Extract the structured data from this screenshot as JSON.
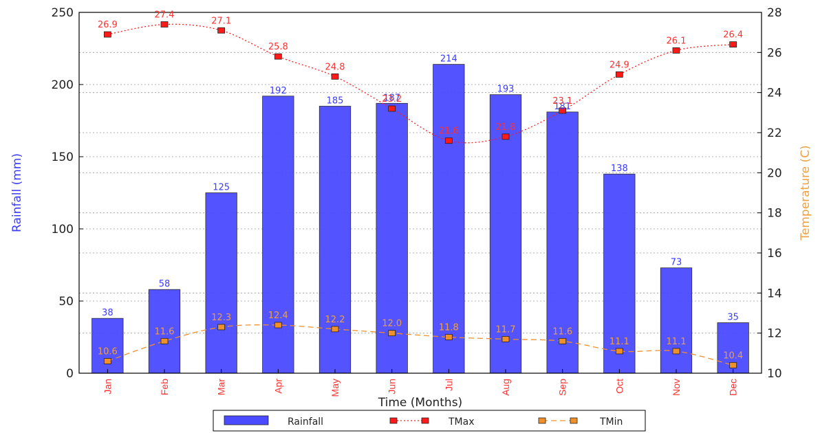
{
  "chart_data": {
    "type": "bar",
    "categories": [
      "Jan",
      "Feb",
      "Mar",
      "Apr",
      "May",
      "Jun",
      "Jul",
      "Aug",
      "Sep",
      "Oct",
      "Nov",
      "Dec"
    ],
    "series": [
      {
        "name": "Rainfall",
        "type": "bar",
        "axis": "left",
        "values": [
          38,
          58,
          125,
          192,
          185,
          187,
          214,
          193,
          181,
          138,
          73,
          35
        ]
      },
      {
        "name": "TMax",
        "type": "line",
        "axis": "right",
        "values": [
          26.9,
          27.4,
          27.1,
          25.8,
          24.8,
          23.2,
          21.6,
          21.8,
          23.1,
          24.9,
          26.1,
          26.4
        ]
      },
      {
        "name": "TMin",
        "type": "line",
        "axis": "right",
        "values": [
          10.6,
          11.6,
          12.3,
          12.4,
          12.2,
          12.0,
          11.8,
          11.7,
          11.6,
          11.1,
          11.1,
          10.4
        ]
      }
    ],
    "tmax_labels": [
      "26.9",
      "27.4",
      "27.1",
      "25.8",
      "24.8",
      "23.2",
      "21.6",
      "21.8",
      "23.1",
      "24.9",
      "26.1",
      "26.4"
    ],
    "tmin_labels": [
      "10.6",
      "11.6",
      "12.3",
      "12.4",
      "12.2",
      "12.0",
      "11.8",
      "11.7",
      "11.6",
      "11.1",
      "11.1",
      "10.4"
    ],
    "xlabel": "Time (Months)",
    "ylabel": "Rainfall (mm)",
    "y2label": "Temperature (C)",
    "ylim": [
      0,
      250
    ],
    "y2lim": [
      10,
      28
    ],
    "yticks": [
      0,
      50,
      100,
      150,
      200,
      250
    ],
    "y2ticks": [
      10,
      12,
      14,
      16,
      18,
      20,
      22,
      24,
      26,
      28
    ],
    "grid": true,
    "legend_position": "bottom",
    "colors": {
      "rainfall": "#4a4aff",
      "tmax": "#ff1a1a",
      "tmin": "#f0902a",
      "left_axis_title": "#3a3aff",
      "right_axis_title": "#f0a040"
    }
  }
}
